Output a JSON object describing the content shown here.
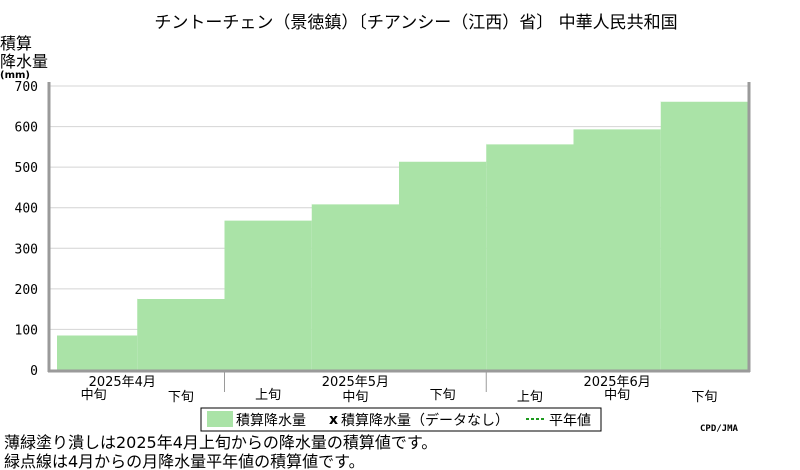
{
  "chart_data": {
    "type": "bar",
    "title": "チントーチェン（景徳鎮）〔チアンシー（江西）省〕 中華人民共和国",
    "ylabel_lines": [
      "積算",
      "降水量"
    ],
    "yunit": "(mm)",
    "ylim": [
      0,
      700
    ],
    "yticks": [
      0,
      100,
      200,
      300,
      400,
      500,
      600,
      700
    ],
    "grid": true,
    "categories": [
      "中旬",
      "下旬",
      "上旬",
      "中旬",
      "下旬",
      "上旬",
      "中旬",
      "下旬"
    ],
    "month_labels": [
      {
        "label": "2025年4月",
        "start": 0,
        "span": 2
      },
      {
        "label": "2025年5月",
        "start": 2,
        "span": 3
      },
      {
        "label": "2025年6月",
        "start": 5,
        "span": 3
      }
    ],
    "series": [
      {
        "name": "積算降水量",
        "values": [
          87,
          177,
          370,
          410,
          515,
          558,
          595,
          663
        ],
        "color": "#aae3a7"
      }
    ],
    "legend": {
      "items": [
        {
          "key": "bar",
          "label": "積算降水量"
        },
        {
          "key": "nodata",
          "label": "積算降水量（データなし）"
        },
        {
          "key": "normal",
          "label": "平年値"
        }
      ],
      "nodata_mark": "x",
      "placement": "bottom"
    },
    "credit": "CPD/JMA",
    "notes": [
      "薄緑塗り潰しは2025年4月上旬からの降水量の積算値です。",
      "緑点線は4月からの月降水量平年値の積算値です。"
    ]
  }
}
